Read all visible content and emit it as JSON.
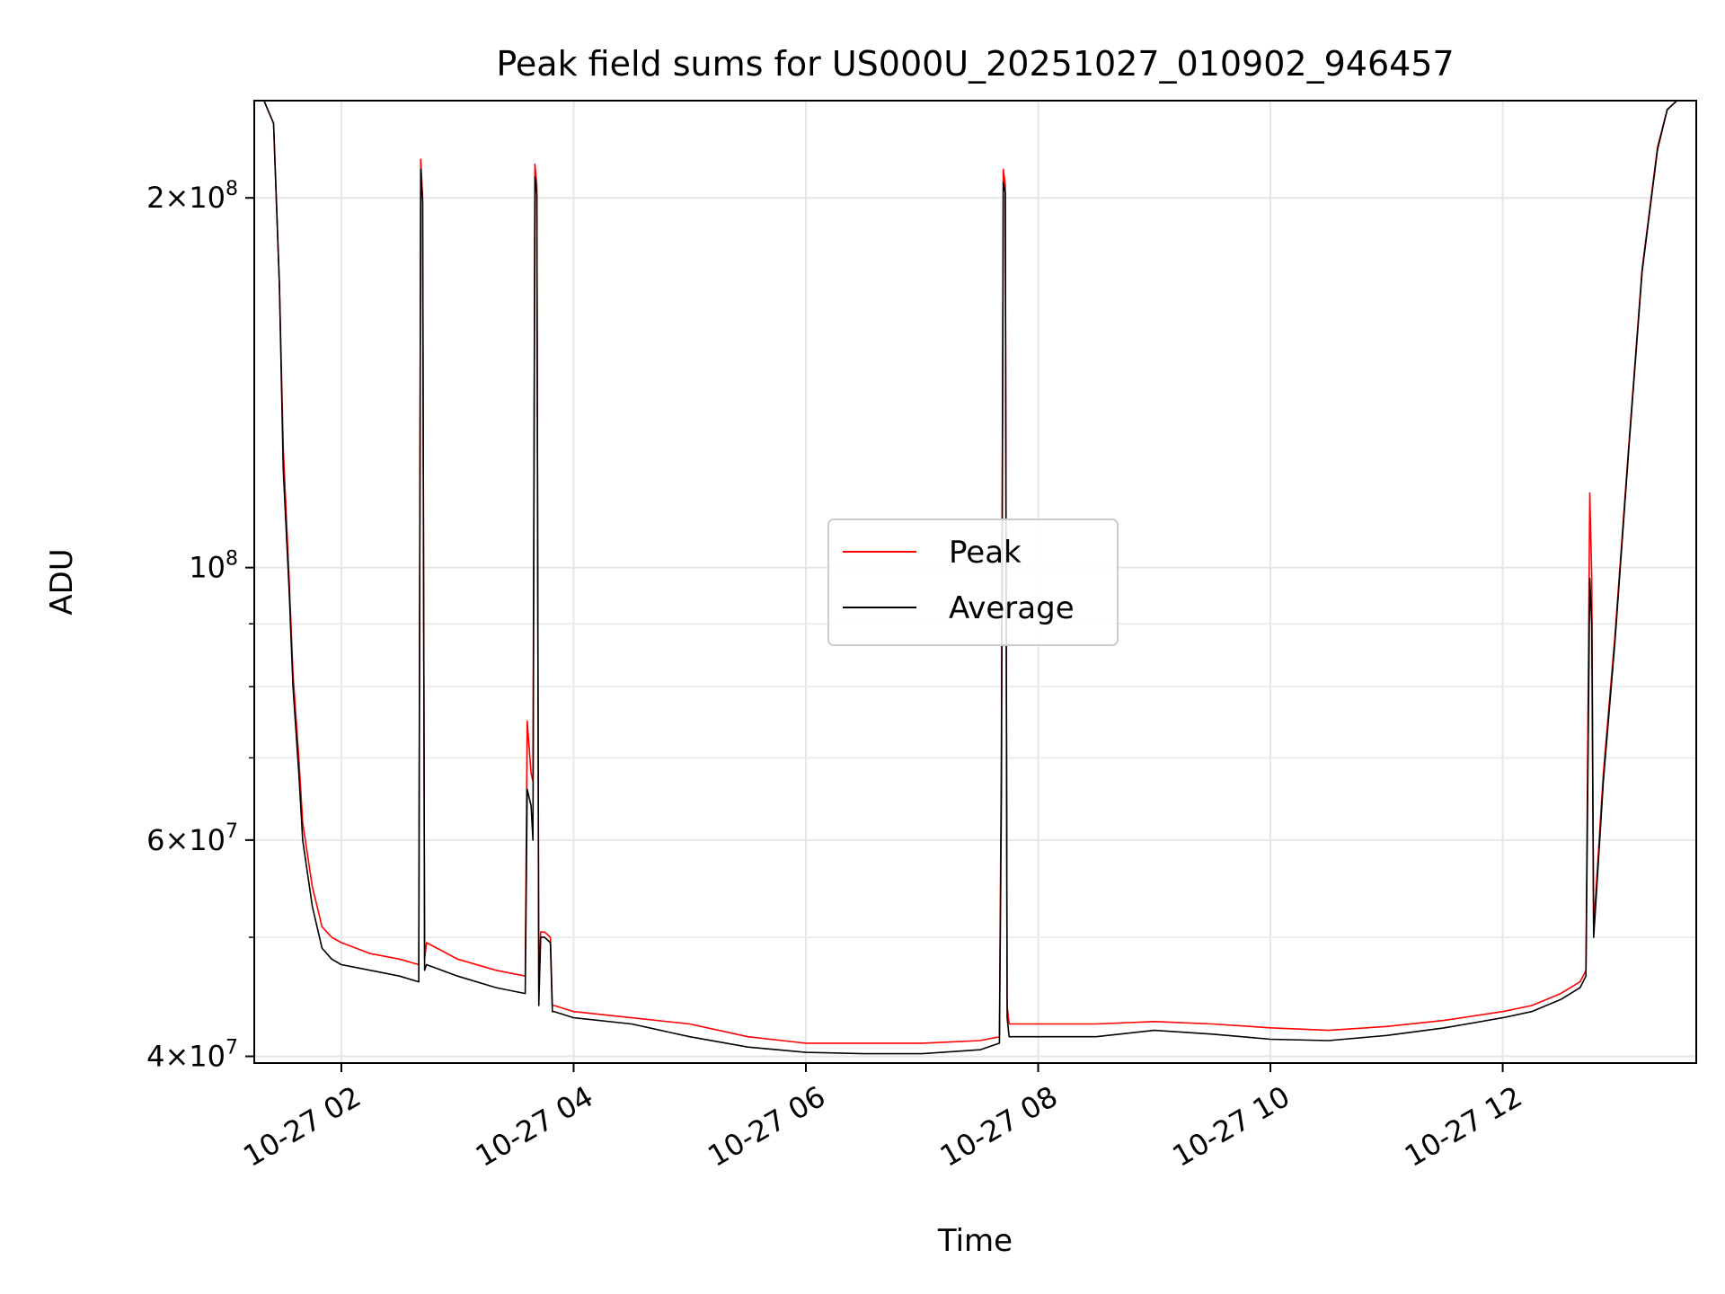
{
  "chart_data": {
    "type": "line",
    "title": "Peak field sums for US000U_20251027_010902_946457",
    "xlabel": "Time",
    "ylabel": "ADU",
    "y_scale": "log",
    "ylim": [
      39500000,
      240000000
    ],
    "xlim": [
      "10-27 01:15",
      "10-27 13:40"
    ],
    "grid": true,
    "legend": {
      "position": "center",
      "entries": [
        "Peak",
        "Average"
      ]
    },
    "x_ticks": [
      "10-27 02",
      "10-27 04",
      "10-27 06",
      "10-27 08",
      "10-27 10",
      "10-27 12"
    ],
    "y_major_ticks": [
      {
        "base": "4",
        "exp": "7",
        "value": 40000000
      },
      {
        "base": "6",
        "exp": "7",
        "value": 60000000
      },
      {
        "base": "",
        "exp": "8",
        "value": 100000000
      },
      {
        "base": "2",
        "exp": "8",
        "value": 200000000
      }
    ],
    "y_minor_ticks": [
      50000000,
      70000000,
      80000000,
      90000000
    ],
    "series": [
      {
        "name": "Peak",
        "color": "#ff0000",
        "x": [
          "10-27 01:15",
          "10-27 01:20",
          "10-27 01:25",
          "10-27 01:28",
          "10-27 01:30",
          "10-27 01:33",
          "10-27 01:35",
          "10-27 01:38",
          "10-27 01:40",
          "10-27 01:45",
          "10-27 01:50",
          "10-27 01:55",
          "10-27 02:00",
          "10-27 02:15",
          "10-27 02:30",
          "10-27 02:40",
          "10-27 02:41",
          "10-27 02:42",
          "10-27 02:43",
          "10-27 02:44",
          "10-27 03:00",
          "10-27 03:20",
          "10-27 03:35",
          "10-27 03:36",
          "10-27 03:38",
          "10-27 03:39",
          "10-27 03:40",
          "10-27 03:41",
          "10-27 03:42",
          "10-27 03:43",
          "10-27 03:45",
          "10-27 03:48",
          "10-27 03:49",
          "10-27 03:50",
          "10-27 04:00",
          "10-27 04:30",
          "10-27 05:00",
          "10-27 05:30",
          "10-27 06:00",
          "10-27 06:30",
          "10-27 07:00",
          "10-27 07:30",
          "10-27 07:40",
          "10-27 07:41",
          "10-27 07:42",
          "10-27 07:43",
          "10-27 07:44",
          "10-27 07:45",
          "10-27 08:00",
          "10-27 08:30",
          "10-27 09:00",
          "10-27 09:30",
          "10-27 10:00",
          "10-27 10:30",
          "10-27 11:00",
          "10-27 11:30",
          "10-27 12:00",
          "10-27 12:15",
          "10-27 12:30",
          "10-27 12:40",
          "10-27 12:43",
          "10-27 12:45",
          "10-27 12:46",
          "10-27 12:47",
          "10-27 12:48",
          "10-27 12:52",
          "10-27 12:58",
          "10-27 13:05",
          "10-27 13:12",
          "10-27 13:20",
          "10-27 13:25",
          "10-27 13:30",
          "10-27 13:40"
        ],
        "y": [
          240000000,
          240000000,
          230000000,
          170000000,
          125000000,
          98000000,
          82000000,
          70000000,
          62000000,
          55000000,
          51000000,
          50000000,
          49500000,
          48500000,
          48000000,
          47500000,
          215000000,
          200000000,
          48000000,
          49500000,
          48000000,
          47000000,
          46500000,
          75000000,
          68000000,
          67000000,
          213000000,
          205000000,
          45500000,
          50500000,
          50500000,
          50000000,
          44000000,
          44000000,
          43500000,
          43000000,
          42500000,
          41500000,
          41000000,
          41000000,
          41000000,
          41200000,
          41500000,
          72000000,
          211000000,
          205000000,
          44000000,
          42500000,
          42500000,
          42500000,
          42700000,
          42500000,
          42200000,
          42000000,
          42300000,
          42800000,
          43500000,
          44000000,
          45000000,
          46000000,
          47000000,
          115000000,
          98000000,
          51000000,
          54000000,
          68000000,
          88000000,
          125000000,
          175000000,
          220000000,
          236000000,
          240000000,
          240000000
        ]
      },
      {
        "name": "Average",
        "color": "#000000",
        "x": [
          "10-27 01:15",
          "10-27 01:20",
          "10-27 01:25",
          "10-27 01:28",
          "10-27 01:30",
          "10-27 01:33",
          "10-27 01:35",
          "10-27 01:38",
          "10-27 01:40",
          "10-27 01:45",
          "10-27 01:50",
          "10-27 01:55",
          "10-27 02:00",
          "10-27 02:15",
          "10-27 02:30",
          "10-27 02:40",
          "10-27 02:41",
          "10-27 02:42",
          "10-27 02:43",
          "10-27 02:44",
          "10-27 03:00",
          "10-27 03:20",
          "10-27 03:35",
          "10-27 03:36",
          "10-27 03:38",
          "10-27 03:39",
          "10-27 03:40",
          "10-27 03:41",
          "10-27 03:42",
          "10-27 03:43",
          "10-27 03:45",
          "10-27 03:48",
          "10-27 03:49",
          "10-27 03:50",
          "10-27 04:00",
          "10-27 04:30",
          "10-27 05:00",
          "10-27 05:30",
          "10-27 06:00",
          "10-27 06:30",
          "10-27 07:00",
          "10-27 07:30",
          "10-27 07:40",
          "10-27 07:41",
          "10-27 07:42",
          "10-27 07:43",
          "10-27 07:44",
          "10-27 07:45",
          "10-27 08:00",
          "10-27 08:30",
          "10-27 09:00",
          "10-27 09:30",
          "10-27 10:00",
          "10-27 10:30",
          "10-27 11:00",
          "10-27 11:30",
          "10-27 12:00",
          "10-27 12:15",
          "10-27 12:30",
          "10-27 12:40",
          "10-27 12:43",
          "10-27 12:45",
          "10-27 12:46",
          "10-27 12:47",
          "10-27 12:48",
          "10-27 12:52",
          "10-27 12:58",
          "10-27 13:05",
          "10-27 13:12",
          "10-27 13:20",
          "10-27 13:25",
          "10-27 13:30",
          "10-27 13:40"
        ],
        "y": [
          240000000,
          240000000,
          230000000,
          170000000,
          120000000,
          96000000,
          80000000,
          68000000,
          60000000,
          53000000,
          49000000,
          48000000,
          47500000,
          47000000,
          46500000,
          46000000,
          211000000,
          198000000,
          47000000,
          47500000,
          46500000,
          45500000,
          45000000,
          66000000,
          64000000,
          60000000,
          208000000,
          201000000,
          44000000,
          50000000,
          50000000,
          49500000,
          43500000,
          43500000,
          43000000,
          42500000,
          41500000,
          40700000,
          40300000,
          40200000,
          40200000,
          40500000,
          41000000,
          65000000,
          206000000,
          202000000,
          43000000,
          41500000,
          41500000,
          41500000,
          42000000,
          41700000,
          41300000,
          41200000,
          41600000,
          42200000,
          43000000,
          43500000,
          44500000,
          45500000,
          46500000,
          98000000,
          90000000,
          50000000,
          53000000,
          67000000,
          87000000,
          124000000,
          174000000,
          219000000,
          236000000,
          240000000,
          240000000
        ]
      }
    ]
  }
}
